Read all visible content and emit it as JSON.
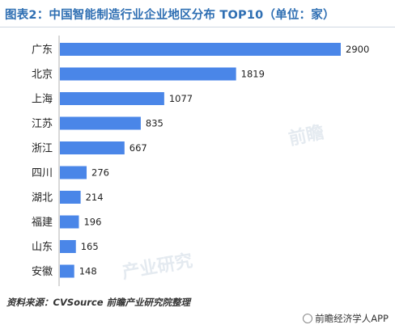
{
  "header": {
    "title": "图表2：中国智能制造行业企业地区分布 TOP10（单位：家）"
  },
  "footer": {
    "source": "资料来源：CVSource  前瞻产业研究院整理",
    "credit": "前瞻经济学人APP"
  },
  "watermark": {
    "text": "前瞻产业研究院"
  },
  "colors": {
    "bar": "#4a86e8",
    "title": "#2f6fb3"
  },
  "chart_data": {
    "type": "bar",
    "orientation": "horizontal",
    "title": "图表2：中国智能制造行业企业地区分布 TOP10（单位：家）",
    "categories": [
      "广东",
      "北京",
      "上海",
      "江苏",
      "浙江",
      "四川",
      "湖北",
      "福建",
      "山东",
      "安徽"
    ],
    "values": [
      2900,
      1819,
      1077,
      835,
      667,
      276,
      214,
      196,
      165,
      148
    ],
    "xlim": [
      0,
      2900
    ],
    "grid": false,
    "legend": "none"
  }
}
